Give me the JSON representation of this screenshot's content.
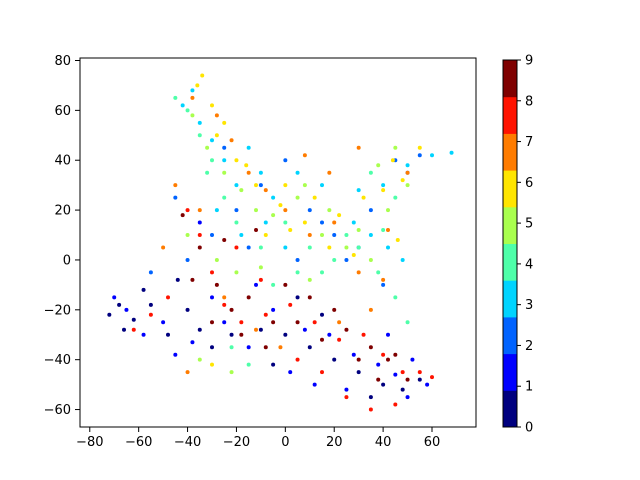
{
  "chart_data": {
    "type": "scatter",
    "title": "",
    "xlabel": "",
    "ylabel": "",
    "xlim": [
      -84,
      78
    ],
    "ylim": [
      -67,
      81
    ],
    "xticks": [
      -80,
      -60,
      -40,
      -20,
      0,
      20,
      40,
      60
    ],
    "yticks": [
      -60,
      -40,
      -20,
      0,
      20,
      40,
      60,
      80
    ],
    "grid": false,
    "marker_size": 2,
    "colormap": "jet",
    "colorbar": {
      "min": 0,
      "max": 9,
      "ticks": [
        0,
        1,
        2,
        3,
        4,
        5,
        6,
        7,
        8,
        9
      ],
      "levels": [
        "#00007f",
        "#0000ff",
        "#0063ff",
        "#00d4ff",
        "#4effa9",
        "#a9ff4e",
        "#ffe500",
        "#ff7c00",
        "#ff1300",
        "#7f0000"
      ]
    },
    "clusters": [
      {
        "label": 0,
        "description": "dark blue",
        "points": [
          [
            -72,
            -22
          ],
          [
            -68,
            -18
          ],
          [
            -62,
            -24
          ],
          [
            -55,
            -18
          ],
          [
            -48,
            -30
          ],
          [
            -40,
            -20
          ],
          [
            -35,
            -28
          ],
          [
            -30,
            -35
          ],
          [
            -22,
            -30
          ],
          [
            -10,
            -28
          ],
          [
            0,
            -30
          ],
          [
            10,
            -35
          ],
          [
            20,
            -40
          ],
          [
            30,
            -45
          ],
          [
            40,
            -50
          ],
          [
            48,
            -52
          ],
          [
            55,
            -48
          ],
          [
            -66,
            -28
          ],
          [
            -58,
            -12
          ],
          [
            -44,
            -8
          ],
          [
            15,
            -22
          ],
          [
            5,
            -15
          ],
          [
            -5,
            -42
          ],
          [
            35,
            -55
          ]
        ]
      },
      {
        "label": 1,
        "description": "blue",
        "points": [
          [
            -65,
            -20
          ],
          [
            -50,
            -25
          ],
          [
            -38,
            -33
          ],
          [
            -25,
            -25
          ],
          [
            -15,
            -35
          ],
          [
            -5,
            -20
          ],
          [
            8,
            -28
          ],
          [
            18,
            -30
          ],
          [
            28,
            -38
          ],
          [
            38,
            -42
          ],
          [
            45,
            -46
          ],
          [
            52,
            -40
          ],
          [
            58,
            -50
          ],
          [
            -70,
            -15
          ],
          [
            -58,
            -30
          ],
          [
            -45,
            -38
          ],
          [
            -30,
            -15
          ],
          [
            -12,
            -10
          ],
          [
            2,
            -45
          ],
          [
            12,
            -50
          ],
          [
            25,
            -52
          ],
          [
            42,
            -30
          ],
          [
            50,
            -55
          ],
          [
            -35,
            15
          ]
        ]
      },
      {
        "label": 2,
        "description": "mid blue",
        "points": [
          [
            -40,
            0
          ],
          [
            -30,
            10
          ],
          [
            -20,
            20
          ],
          [
            -10,
            30
          ],
          [
            0,
            40
          ],
          [
            10,
            20
          ],
          [
            20,
            10
          ],
          [
            30,
            5
          ],
          [
            40,
            -10
          ],
          [
            45,
            40
          ],
          [
            50,
            35
          ],
          [
            55,
            42
          ],
          [
            -55,
            -5
          ],
          [
            -45,
            25
          ],
          [
            -25,
            45
          ],
          [
            -15,
            5
          ],
          [
            5,
            0
          ],
          [
            15,
            15
          ],
          [
            25,
            0
          ],
          [
            35,
            20
          ]
        ]
      },
      {
        "label": 3,
        "description": "cyan",
        "points": [
          [
            -42,
            62
          ],
          [
            -38,
            68
          ],
          [
            -35,
            55
          ],
          [
            -30,
            48
          ],
          [
            -25,
            40
          ],
          [
            -20,
            30
          ],
          [
            -15,
            45
          ],
          [
            -10,
            35
          ],
          [
            -5,
            25
          ],
          [
            5,
            35
          ],
          [
            15,
            30
          ],
          [
            28,
            15
          ],
          [
            35,
            10
          ],
          [
            42,
            5
          ],
          [
            48,
            0
          ],
          [
            30,
            28
          ],
          [
            40,
            30
          ],
          [
            50,
            38
          ],
          [
            60,
            42
          ],
          [
            68,
            43
          ],
          [
            -28,
            20
          ],
          [
            -18,
            10
          ],
          [
            -8,
            15
          ],
          [
            0,
            5
          ]
        ]
      },
      {
        "label": 4,
        "description": "aquamarine",
        "points": [
          [
            -40,
            60
          ],
          [
            -35,
            50
          ],
          [
            -30,
            40
          ],
          [
            -25,
            25
          ],
          [
            -20,
            15
          ],
          [
            -10,
            5
          ],
          [
            0,
            15
          ],
          [
            10,
            5
          ],
          [
            20,
            0
          ],
          [
            30,
            5
          ],
          [
            38,
            -5
          ],
          [
            45,
            -15
          ],
          [
            50,
            -25
          ],
          [
            -45,
            65
          ],
          [
            -32,
            35
          ],
          [
            -22,
            -35
          ],
          [
            -15,
            -42
          ],
          [
            15,
            -5
          ],
          [
            25,
            10
          ],
          [
            35,
            35
          ],
          [
            45,
            25
          ],
          [
            -5,
            -10
          ],
          [
            5,
            -5
          ],
          [
            40,
            12
          ]
        ]
      },
      {
        "label": 5,
        "description": "yellow-green",
        "points": [
          [
            -38,
            58
          ],
          [
            -32,
            45
          ],
          [
            -25,
            35
          ],
          [
            -18,
            28
          ],
          [
            -12,
            20
          ],
          [
            -5,
            18
          ],
          [
            5,
            25
          ],
          [
            15,
            10
          ],
          [
            25,
            5
          ],
          [
            35,
            0
          ],
          [
            42,
            20
          ],
          [
            50,
            30
          ],
          [
            -40,
            10
          ],
          [
            -28,
            0
          ],
          [
            -20,
            -5
          ],
          [
            -10,
            -3
          ],
          [
            8,
            30
          ],
          [
            18,
            20
          ],
          [
            30,
            12
          ],
          [
            45,
            45
          ],
          [
            -35,
            -40
          ],
          [
            -22,
            -45
          ],
          [
            10,
            -8
          ],
          [
            38,
            38
          ]
        ]
      },
      {
        "label": 6,
        "description": "yellow",
        "points": [
          [
            -36,
            70
          ],
          [
            -30,
            62
          ],
          [
            -25,
            55
          ],
          [
            -20,
            40
          ],
          [
            -12,
            30
          ],
          [
            -2,
            22
          ],
          [
            8,
            15
          ],
          [
            18,
            5
          ],
          [
            28,
            2
          ],
          [
            40,
            28
          ],
          [
            48,
            32
          ],
          [
            55,
            45
          ],
          [
            -34,
            74
          ],
          [
            -28,
            50
          ],
          [
            -16,
            38
          ],
          [
            0,
            30
          ],
          [
            12,
            25
          ],
          [
            22,
            18
          ],
          [
            32,
            25
          ],
          [
            44,
            40
          ],
          [
            -8,
            10
          ],
          [
            2,
            12
          ],
          [
            -30,
            -42
          ],
          [
            46,
            8
          ]
        ]
      },
      {
        "label": 7,
        "description": "orange",
        "points": [
          [
            -38,
            65
          ],
          [
            -28,
            58
          ],
          [
            -22,
            48
          ],
          [
            -15,
            35
          ],
          [
            -8,
            28
          ],
          [
            0,
            20
          ],
          [
            10,
            10
          ],
          [
            20,
            15
          ],
          [
            30,
            -5
          ],
          [
            40,
            -8
          ],
          [
            50,
            35
          ],
          [
            -45,
            30
          ],
          [
            -35,
            20
          ],
          [
            -25,
            -15
          ],
          [
            -12,
            -28
          ],
          [
            -2,
            -35
          ],
          [
            8,
            42
          ],
          [
            18,
            35
          ],
          [
            30,
            45
          ],
          [
            42,
            12
          ],
          [
            -50,
            5
          ],
          [
            -40,
            -45
          ],
          [
            22,
            -25
          ],
          [
            35,
            -20
          ]
        ]
      },
      {
        "label": 8,
        "description": "red",
        "points": [
          [
            -40,
            20
          ],
          [
            -35,
            10
          ],
          [
            -30,
            -5
          ],
          [
            -25,
            -18
          ],
          [
            -18,
            -25
          ],
          [
            -8,
            -22
          ],
          [
            2,
            -18
          ],
          [
            12,
            -25
          ],
          [
            22,
            -32
          ],
          [
            32,
            -30
          ],
          [
            40,
            -38
          ],
          [
            48,
            -45
          ],
          [
            55,
            -45
          ],
          [
            60,
            -47
          ],
          [
            -55,
            -22
          ],
          [
            -62,
            -28
          ],
          [
            -48,
            -15
          ],
          [
            -20,
            5
          ],
          [
            -10,
            -8
          ],
          [
            5,
            -40
          ],
          [
            15,
            -45
          ],
          [
            25,
            -55
          ],
          [
            35,
            -60
          ],
          [
            45,
            -58
          ]
        ]
      },
      {
        "label": 9,
        "description": "dark red",
        "points": [
          [
            -42,
            18
          ],
          [
            -35,
            5
          ],
          [
            -28,
            -10
          ],
          [
            -22,
            -20
          ],
          [
            -15,
            -15
          ],
          [
            -5,
            -25
          ],
          [
            5,
            -25
          ],
          [
            15,
            -32
          ],
          [
            25,
            -28
          ],
          [
            35,
            -35
          ],
          [
            42,
            -40
          ],
          [
            50,
            -48
          ],
          [
            -38,
            -8
          ],
          [
            -30,
            -25
          ],
          [
            -18,
            -30
          ],
          [
            -8,
            -35
          ],
          [
            0,
            -10
          ],
          [
            10,
            -15
          ],
          [
            20,
            -20
          ],
          [
            30,
            -40
          ],
          [
            38,
            -48
          ],
          [
            45,
            -38
          ],
          [
            -25,
            8
          ],
          [
            -12,
            12
          ]
        ]
      }
    ]
  }
}
